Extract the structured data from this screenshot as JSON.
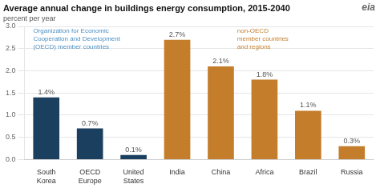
{
  "chart_data": {
    "type": "bar",
    "title": "Average annual change in buildings energy consumption, 2015-2040",
    "subtitle": "percent per year",
    "categories": [
      "South\nKorea",
      "OECD\nEurope",
      "United\nStates",
      "India",
      "China",
      "Africa",
      "Brazil",
      "Russia"
    ],
    "values": [
      1.4,
      0.7,
      0.1,
      2.7,
      2.1,
      1.8,
      1.1,
      0.3
    ],
    "value_labels": [
      "1.4%",
      "0.7%",
      "0.1%",
      "2.7%",
      "2.1%",
      "1.8%",
      "1.1%",
      "0.3%"
    ],
    "data_labels": true,
    "colors": [
      "#1b3f5e",
      "#1b3f5e",
      "#1b3f5e",
      "#c47d2a",
      "#c47d2a",
      "#c47d2a",
      "#c47d2a",
      "#c47d2a"
    ],
    "annotations": [
      {
        "text": "Organization for Economic\nCooperation and Development\n(OECD) member countries",
        "color": "#4a90c4"
      },
      {
        "text": "non-OECD\nmember countries\nand regions",
        "color": "#c47d2a"
      },
      {
        "text": "eia",
        "color": "#666666"
      }
    ],
    "ylim": [
      0,
      3.0
    ],
    "yticks": [
      {
        "value": 0.0,
        "label": "0.0"
      },
      0.5,
      {
        "value": 1.0,
        "label": "1.0"
      },
      1.5,
      {
        "value": 2.0,
        "label": "2.0"
      },
      2.5,
      {
        "value": 3.0,
        "label": "3.0"
      }
    ],
    "grid": true
  }
}
